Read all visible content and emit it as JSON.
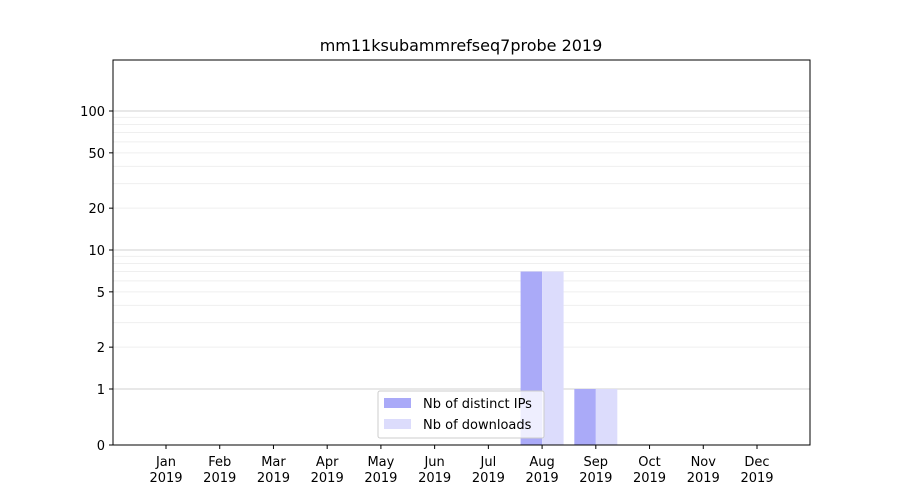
{
  "chart_data": {
    "type": "bar",
    "title": "mm11ksubammrefseq7probe 2019",
    "xlabel": "",
    "ylabel": "",
    "y_scale": "symlog",
    "y_ticks": [
      "0",
      "1",
      "2",
      "5",
      "10",
      "20",
      "50",
      "100"
    ],
    "categories": [
      {
        "month": "Jan",
        "year": "2019"
      },
      {
        "month": "Feb",
        "year": "2019"
      },
      {
        "month": "Mar",
        "year": "2019"
      },
      {
        "month": "Apr",
        "year": "2019"
      },
      {
        "month": "May",
        "year": "2019"
      },
      {
        "month": "Jun",
        "year": "2019"
      },
      {
        "month": "Jul",
        "year": "2019"
      },
      {
        "month": "Aug",
        "year": "2019"
      },
      {
        "month": "Sep",
        "year": "2019"
      },
      {
        "month": "Oct",
        "year": "2019"
      },
      {
        "month": "Nov",
        "year": "2019"
      },
      {
        "month": "Dec",
        "year": "2019"
      }
    ],
    "series": [
      {
        "name": "Nb of distinct IPs",
        "color": "#aaaaf8",
        "values": [
          0,
          0,
          0,
          0,
          0,
          0,
          0,
          7,
          1,
          0,
          0,
          0
        ]
      },
      {
        "name": "Nb of downloads",
        "color": "#dcdcfc",
        "values": [
          0,
          0,
          0,
          0,
          0,
          0,
          0,
          7,
          1,
          0,
          0,
          0
        ]
      }
    ],
    "grid": true,
    "legend_position": "bottom-center"
  }
}
